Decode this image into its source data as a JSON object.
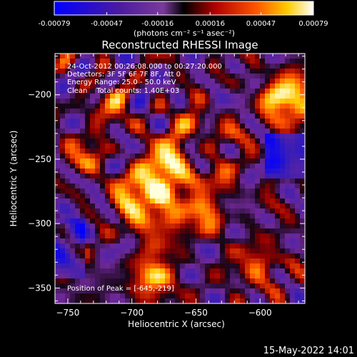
{
  "chart_data": {
    "type": "heatmap",
    "title": "Reconstructed RHESSI Image",
    "xlabel": "Heliocentric X (arcsec)",
    "ylabel": "Heliocentric Y (arcsec)",
    "xlim": [
      -760,
      -565
    ],
    "ylim": [
      -362,
      -168
    ],
    "xticks": [
      -750,
      -700,
      -650,
      -600
    ],
    "yticks": [
      -350,
      -300,
      -250,
      -200
    ],
    "colorbar": {
      "ticks": [
        "-0.00079",
        "-0.00047",
        "-0.00016",
        "0.00016",
        "0.00047",
        "0.00079"
      ],
      "range": [
        -0.00079,
        0.00079
      ],
      "unit_label": "(photons cm⁻² s⁻¹ asec⁻²)"
    },
    "annotations": [
      "24-Oct-2012 00:26:08.000 to 00:27:20.000",
      "Detectors: 3F 5F 6F 7F 8F, Att 0",
      "Energy Range: 25.0 - 50.0 keV",
      "Clean    Total counts: 1.40E+03"
    ],
    "peak_label": "Position of Peak = [-645,-219]",
    "peak_xy": [
      -645,
      -219
    ]
  },
  "footer_date": "15-May-2022 14:01"
}
